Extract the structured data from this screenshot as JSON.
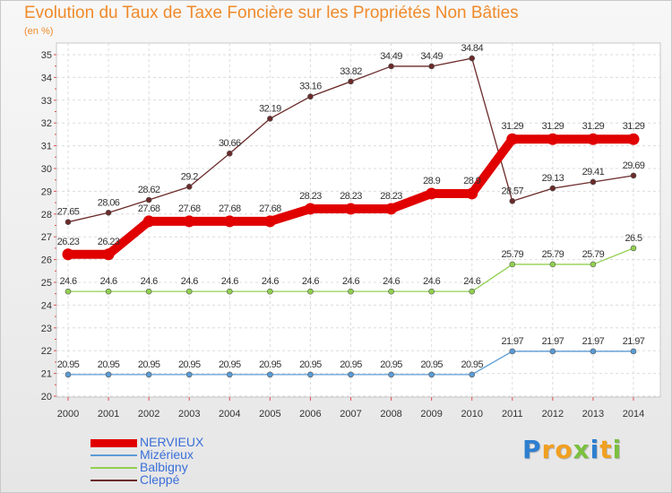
{
  "title": "Evolution du Taux de Taxe Foncière sur les Propriétés Non Bâties",
  "subtitle": "(en %)",
  "logo": {
    "letters": [
      {
        "ch": "P",
        "color": "#2e7fd0"
      },
      {
        "ch": "r",
        "color": "#f0a020"
      },
      {
        "ch": "o",
        "color": "#f0a020"
      },
      {
        "ch": "x",
        "color": "#7bc040"
      },
      {
        "ch": "i",
        "color": "#2e7fd0"
      },
      {
        "ch": "t",
        "color": "#f0a020"
      },
      {
        "ch": "i",
        "color": "#7bc040"
      }
    ]
  },
  "chart_data": {
    "type": "line",
    "title": "Evolution du Taux de Taxe Foncière sur les Propriétés Non Bâties",
    "ylabel": "(en %)",
    "xlabel": "",
    "x": [
      "2000",
      "2001",
      "2002",
      "2003",
      "2004",
      "2005",
      "2006",
      "2007",
      "2008",
      "2009",
      "2010",
      "2011",
      "2012",
      "2013",
      "2014"
    ],
    "ylim": [
      20,
      35
    ],
    "yticks": [
      "20",
      "21",
      "22",
      "23",
      "24",
      "25",
      "26",
      "27",
      "28",
      "29",
      "30",
      "31",
      "32",
      "33",
      "34",
      "35"
    ],
    "grid": true,
    "legend_position": "bottom-left",
    "series": [
      {
        "name": "NERVIEUX",
        "color": "#e00000",
        "values": [
          26.23,
          26.23,
          27.68,
          27.68,
          27.68,
          27.68,
          28.23,
          28.23,
          28.23,
          28.9,
          28.9,
          31.29,
          31.29,
          31.29,
          31.29
        ],
        "labels": [
          "26.23",
          "26.23",
          "27.68",
          "27.68",
          "27.68",
          "27.68",
          "28.23",
          "28.23",
          "28.23",
          "28.9",
          "28.9",
          "31.29",
          "31.29",
          "31.29",
          "31.29"
        ]
      },
      {
        "name": "Mizérieux",
        "color": "#5b9bd5",
        "values": [
          20.95,
          20.95,
          20.95,
          20.95,
          20.95,
          20.95,
          20.95,
          20.95,
          20.95,
          20.95,
          20.95,
          21.97,
          21.97,
          21.97,
          21.97
        ],
        "labels": [
          "20.95",
          "20.95",
          "20.95",
          "20.95",
          "20.95",
          "20.95",
          "20.95",
          "20.95",
          "20.95",
          "20.95",
          "20.95",
          "21.97",
          "21.97",
          "21.97",
          "21.97"
        ]
      },
      {
        "name": "Balbigny",
        "color": "#92d050",
        "values": [
          24.6,
          24.6,
          24.6,
          24.6,
          24.6,
          24.6,
          24.6,
          24.6,
          24.6,
          24.6,
          24.6,
          25.79,
          25.79,
          25.79,
          26.5
        ],
        "labels": [
          "24.6",
          "24.6",
          "24.6",
          "24.6",
          "24.6",
          "24.6",
          "24.6",
          "24.6",
          "24.6",
          "24.6",
          "24.6",
          "25.79",
          "25.79",
          "25.79",
          "26.5"
        ]
      },
      {
        "name": "Cleppé",
        "color": "#6b2a2a",
        "values": [
          27.65,
          28.06,
          28.62,
          29.2,
          30.66,
          32.19,
          33.16,
          33.82,
          34.49,
          34.49,
          34.84,
          28.57,
          29.13,
          29.41,
          29.69
        ],
        "labels": [
          "27.65",
          "28.06",
          "28.62",
          "29.2",
          "30.66",
          "32.19",
          "33.16",
          "33.82",
          "34.49",
          "34.49",
          "34.84",
          "28.57",
          "29.13",
          "29.41",
          "29.69"
        ]
      }
    ]
  }
}
